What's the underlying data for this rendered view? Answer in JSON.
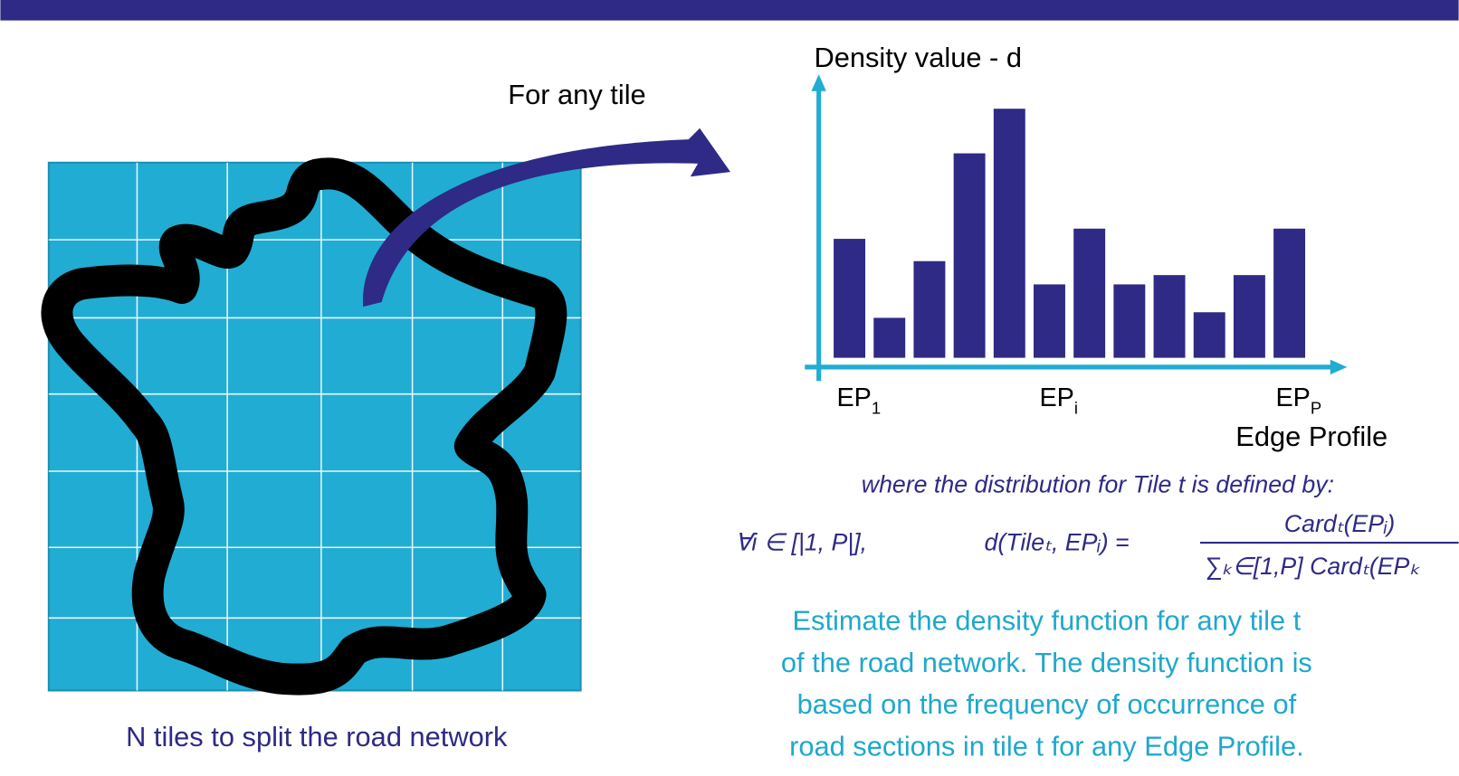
{
  "caption": "N tiles to split the road network",
  "arrow_label": "For any tile",
  "chart_data": {
    "type": "bar",
    "y_label": "Density value - d",
    "x_label": "Edge Profile",
    "categories": [
      {
        "base": "EP",
        "sub": "1"
      },
      null,
      null,
      null,
      null,
      {
        "base": "EP",
        "sub": "i"
      },
      null,
      null,
      null,
      null,
      null,
      {
        "base": "EP",
        "sub": "P"
      }
    ],
    "values": [
      128,
      43,
      104,
      220,
      268,
      79,
      139,
      79,
      89,
      49,
      89,
      139
    ],
    "ylim": [
      0,
      280
    ],
    "color": "#2e2a85"
  },
  "formula": {
    "intro": "where the distribution for Tile t is defined by:",
    "quantifier": "∀i ∈ [|1, P|],",
    "lhs": "d(Tileₜ, EPᵢ) =",
    "numerator": "Cardₜ(EPᵢ)",
    "denominator": "∑ₖ∈[1,P] Cardₜ(EPₖ"
  },
  "description": [
    "Estimate the density function for any tile t",
    "of the road network. The density function is",
    "based on the frequency of occurrence of",
    "road sections in tile t for any Edge Profile."
  ]
}
